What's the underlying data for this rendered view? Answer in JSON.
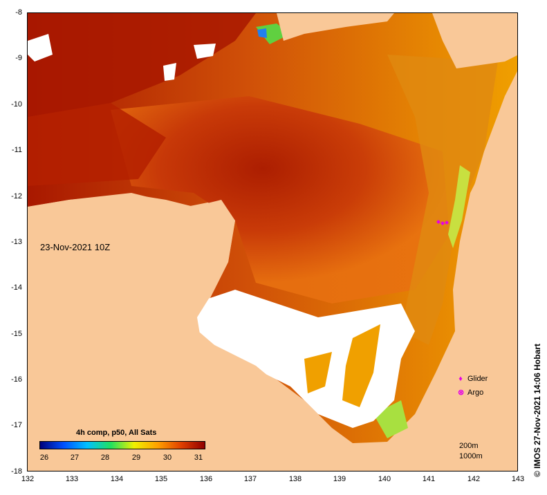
{
  "map": {
    "date_label": "23-Nov-2021 10Z",
    "lat_ticks": [
      "-8",
      "-9",
      "-10",
      "-11",
      "-12",
      "-13",
      "-14",
      "-15",
      "-16",
      "-17",
      "-18"
    ],
    "lon_ticks": [
      "132",
      "133",
      "134",
      "135",
      "136",
      "137",
      "138",
      "139",
      "140",
      "141",
      "142",
      "143"
    ],
    "colors": {
      "land": "#f9c898",
      "no_data": "#ffffff",
      "hot": "#a81800",
      "warm": "#e06010",
      "mild": "#f0a000",
      "cool": "#f0d020",
      "cold": "#90e030"
    }
  },
  "legend": {
    "title": "4h comp, p50, All Sats",
    "scale_labels": [
      "26",
      "27",
      "28",
      "29",
      "30",
      "31"
    ],
    "gradient_colors": [
      "#00007a",
      "#0050ff",
      "#00c0ff",
      "#20e060",
      "#f0f000",
      "#ffa000",
      "#e04000",
      "#900000"
    ]
  },
  "key": {
    "glider_label": "Glider",
    "argo_label": "Argo",
    "depth_200": "200m",
    "depth_1000": "1000m"
  },
  "credit": "© IMOS 27-Nov-2021 14:06 Hobart"
}
